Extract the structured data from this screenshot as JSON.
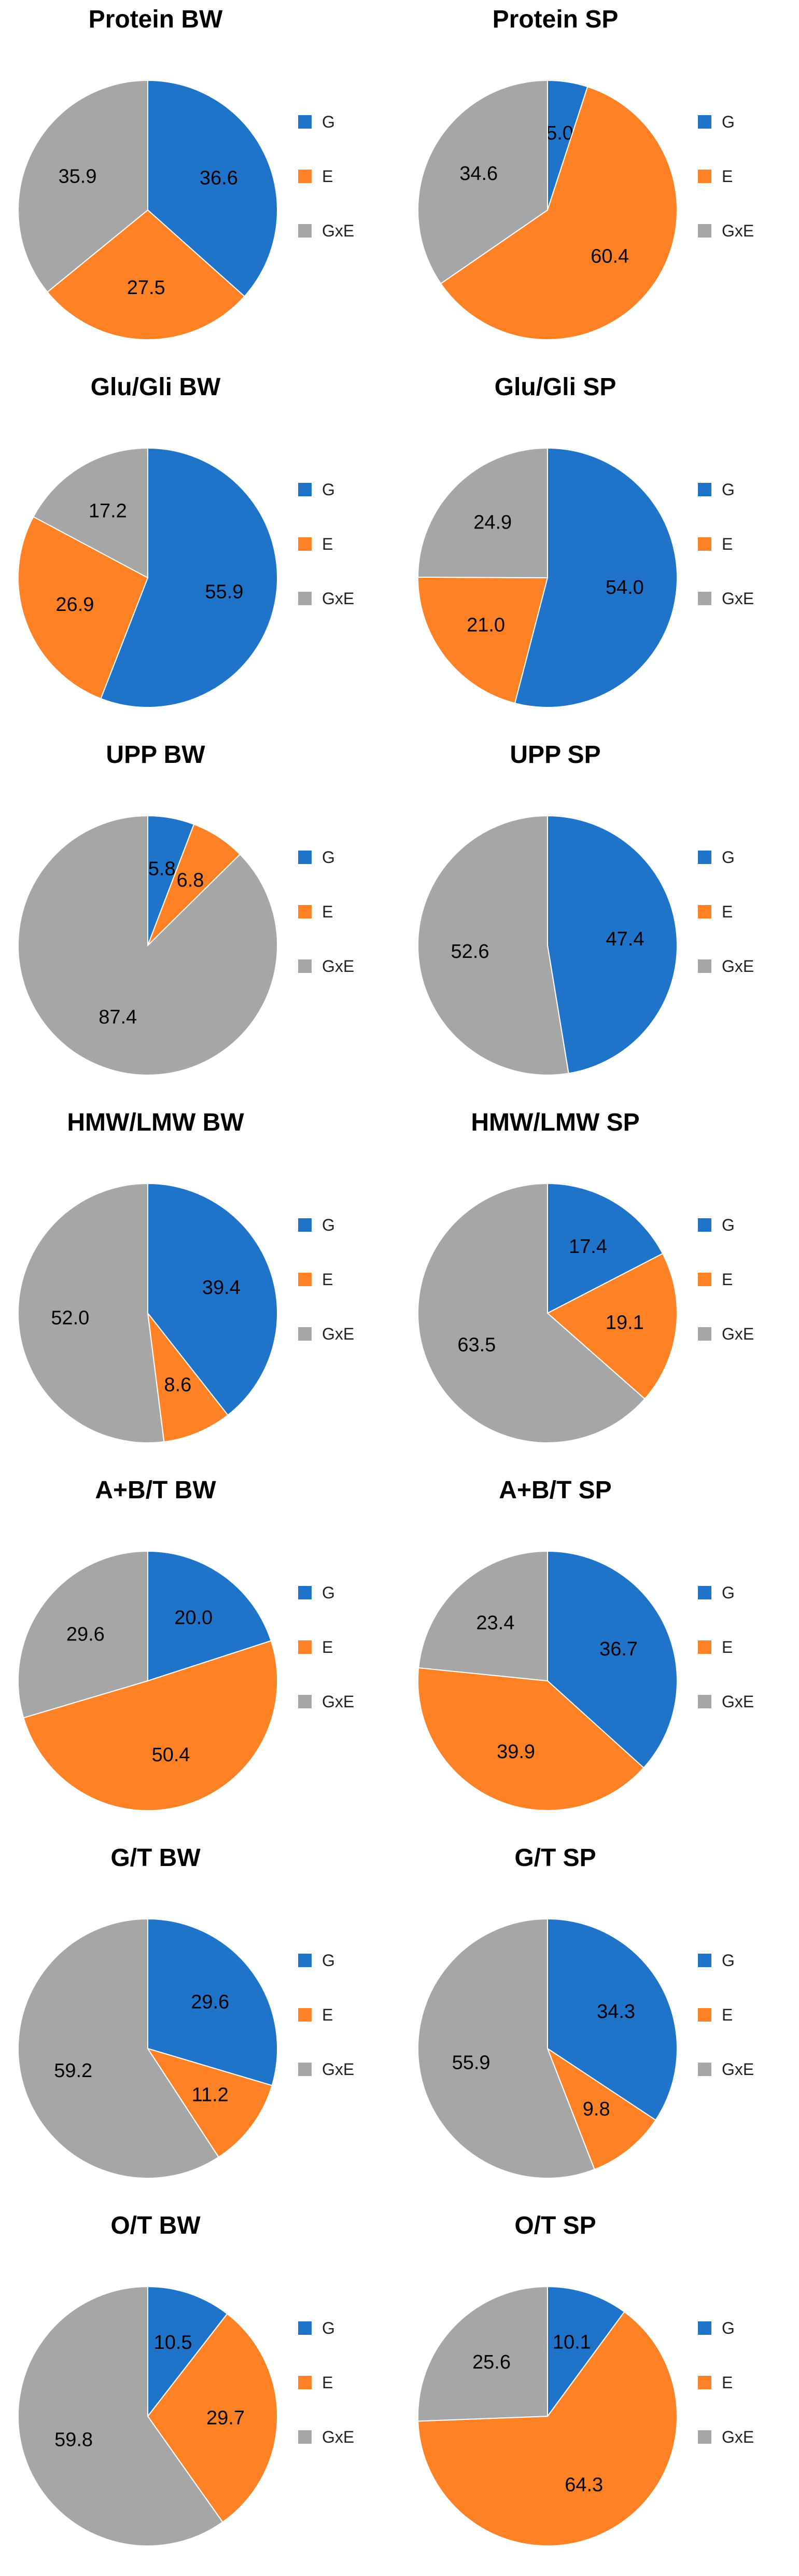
{
  "chart_data": [
    {
      "type": "pie",
      "title": "Protein BW",
      "categories": [
        "G",
        "E",
        "GxE"
      ],
      "values": [
        36.6,
        27.5,
        35.9
      ]
    },
    {
      "type": "pie",
      "title": "Protein SP",
      "categories": [
        "G",
        "E",
        "GxE"
      ],
      "values": [
        5.0,
        60.4,
        34.6
      ]
    },
    {
      "type": "pie",
      "title": "Glu/Gli BW",
      "categories": [
        "G",
        "E",
        "GxE"
      ],
      "values": [
        55.9,
        26.9,
        17.2
      ]
    },
    {
      "type": "pie",
      "title": "Glu/Gli SP",
      "categories": [
        "G",
        "E",
        "GxE"
      ],
      "values": [
        54.0,
        21.0,
        24.9
      ]
    },
    {
      "type": "pie",
      "title": "UPP BW",
      "categories": [
        "G",
        "E",
        "GxE"
      ],
      "values": [
        5.8,
        6.8,
        87.4
      ]
    },
    {
      "type": "pie",
      "title": "UPP SP",
      "categories": [
        "G",
        "E",
        "GxE"
      ],
      "values": [
        47.4,
        0,
        52.6
      ]
    },
    {
      "type": "pie",
      "title": "HMW/LMW BW",
      "categories": [
        "G",
        "E",
        "GxE"
      ],
      "values": [
        39.4,
        8.6,
        52.0
      ]
    },
    {
      "type": "pie",
      "title": "HMW/LMW SP",
      "categories": [
        "G",
        "E",
        "GxE"
      ],
      "values": [
        17.4,
        19.1,
        63.5
      ]
    },
    {
      "type": "pie",
      "title": "A+B/T BW",
      "categories": [
        "G",
        "E",
        "GxE"
      ],
      "values": [
        20.0,
        50.4,
        29.6
      ]
    },
    {
      "type": "pie",
      "title": "A+B/T SP",
      "categories": [
        "G",
        "E",
        "GxE"
      ],
      "values": [
        36.7,
        39.9,
        23.4
      ]
    },
    {
      "type": "pie",
      "title": "G/T BW",
      "categories": [
        "G",
        "E",
        "GxE"
      ],
      "values": [
        29.6,
        11.2,
        59.2
      ]
    },
    {
      "type": "pie",
      "title": "G/T SP",
      "categories": [
        "G",
        "E",
        "GxE"
      ],
      "values": [
        34.3,
        9.8,
        55.9
      ]
    },
    {
      "type": "pie",
      "title": "O/T BW",
      "categories": [
        "G",
        "E",
        "GxE"
      ],
      "values": [
        10.5,
        29.7,
        59.8
      ]
    },
    {
      "type": "pie",
      "title": "O/T SP",
      "categories": [
        "G",
        "E",
        "GxE"
      ],
      "values": [
        10.1,
        64.3,
        25.6
      ]
    }
  ],
  "colors": {
    "G": "#1f74c9",
    "E": "#fe8125",
    "GxE": "#a6a6a6"
  },
  "legend_placement": "right"
}
